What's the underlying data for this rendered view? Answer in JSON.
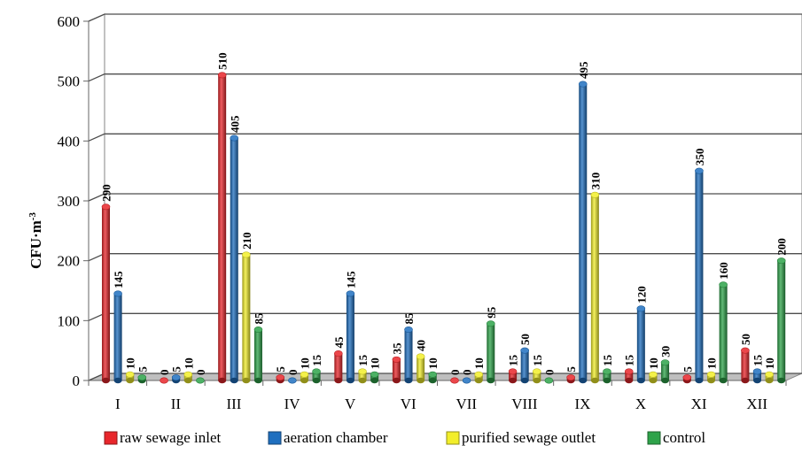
{
  "chart_data": {
    "type": "bar",
    "title": "",
    "xlabel": "",
    "ylabel": "CFU·m",
    "ylabel_superscript": "-3",
    "ylim": [
      0,
      600
    ],
    "yticks": [
      0,
      100,
      200,
      300,
      400,
      500,
      600
    ],
    "grid": true,
    "legend_position": "bottom",
    "categories": [
      "I",
      "II",
      "III",
      "IV",
      "V",
      "VI",
      "VII",
      "VIII",
      "IX",
      "X",
      "XI",
      "XII"
    ],
    "series": [
      {
        "name": "raw sewage inlet",
        "color": "#e8262b",
        "values": [
          290,
          0,
          510,
          5,
          45,
          35,
          0,
          15,
          5,
          15,
          5,
          50
        ]
      },
      {
        "name": "aeration chamber",
        "color": "#1f6fbf",
        "values": [
          145,
          5,
          405,
          0,
          145,
          85,
          0,
          50,
          495,
          120,
          350,
          15
        ]
      },
      {
        "name": "purified sewage outlet",
        "color": "#f2ee2a",
        "values": [
          10,
          10,
          210,
          10,
          15,
          40,
          10,
          15,
          310,
          10,
          10,
          10
        ]
      },
      {
        "name": "control",
        "color": "#2ea34a",
        "values": [
          5,
          0,
          85,
          15,
          10,
          10,
          95,
          0,
          15,
          30,
          160,
          200
        ]
      }
    ]
  }
}
